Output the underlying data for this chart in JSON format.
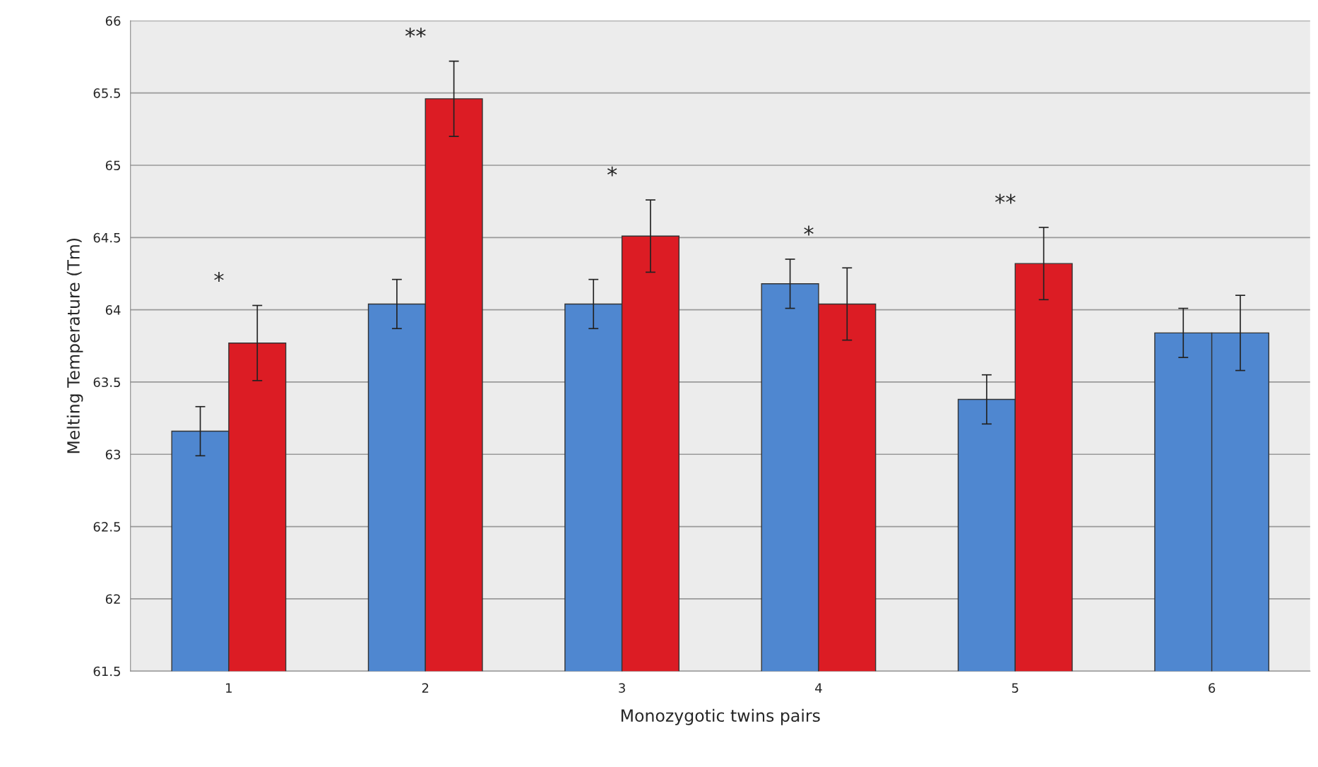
{
  "chart_data": {
    "type": "bar",
    "xlabel": "Monozygotic twins pairs",
    "ylabel": "Melting Temperature (Tm)",
    "categories": [
      "1",
      "2",
      "3",
      "4",
      "5",
      "6"
    ],
    "series": [
      {
        "color": "#4f87d0",
        "values": [
          63.16,
          64.04,
          64.04,
          64.18,
          63.38,
          63.84
        ],
        "errors": [
          0.17,
          0.17,
          0.17,
          0.17,
          0.17,
          0.17
        ]
      },
      {
        "color": "#dc1c24",
        "colors": [
          null,
          null,
          null,
          null,
          null,
          "#4f87d0"
        ],
        "values": [
          63.77,
          65.46,
          64.51,
          64.04,
          64.32,
          63.84
        ],
        "errors": [
          0.26,
          0.26,
          0.25,
          0.25,
          0.25,
          0.26
        ]
      }
    ],
    "ylim": [
      61.5,
      66
    ],
    "yticks": [
      61.5,
      62,
      62.5,
      63,
      63.5,
      64,
      64.5,
      65,
      65.5,
      66
    ],
    "grid": "y",
    "legend": false,
    "annotations": [
      "*",
      "**",
      "*",
      "*",
      "**"
    ]
  }
}
